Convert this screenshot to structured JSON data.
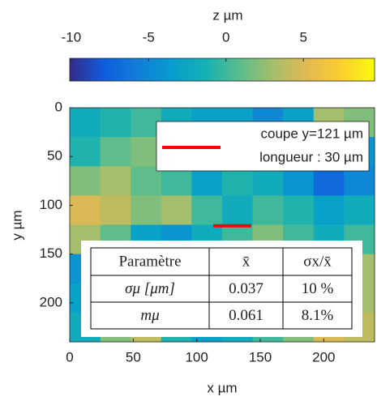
{
  "chart_data": {
    "type": "heatmap",
    "xlabel": "x µm",
    "ylabel": "y µm",
    "colorbar_label": "z µm",
    "clim": [
      -10.1,
      9.6
    ],
    "cticks": [
      -10,
      -5,
      0,
      5
    ],
    "colormap": [
      "#352a87",
      "#0f5cdd",
      "#127dd8",
      "#079ccf",
      "#15b1b4",
      "#59bd8c",
      "#a5be6b",
      "#e1b952",
      "#fcce2e",
      "#f9fb0e"
    ],
    "xlim": [
      0,
      240
    ],
    "ylim": [
      0,
      240
    ],
    "xticks": [
      0,
      50,
      100,
      150,
      200
    ],
    "yticks": [
      0,
      50,
      100,
      150,
      200
    ],
    "x": [
      12,
      36,
      60,
      84,
      108,
      132,
      156,
      180,
      204,
      228
    ],
    "y": [
      15,
      45,
      75,
      105,
      135,
      165,
      195,
      225
    ],
    "z": [
      [
        -2,
        -1,
        0,
        -2,
        -3,
        -3,
        -5,
        -3,
        3,
        2
      ],
      [
        -1,
        1,
        2,
        -1,
        -3,
        -2,
        -3,
        -5,
        -6,
        -4
      ],
      [
        2,
        3,
        1,
        0,
        -3,
        -1,
        -2,
        -4,
        -7,
        -5
      ],
      [
        5,
        4,
        2,
        3,
        0,
        -2,
        0,
        -1,
        -3,
        -2
      ],
      [
        3,
        1,
        -3,
        -4,
        -2,
        0,
        2,
        0,
        -2,
        0
      ],
      [
        -4,
        -3,
        -4,
        -3,
        -1,
        1,
        0,
        -2,
        2,
        3
      ],
      [
        -3,
        -3,
        -2,
        -4,
        -2,
        -1,
        2,
        3,
        4,
        3
      ],
      [
        -2,
        2,
        4,
        -1,
        -3,
        -2,
        0,
        2,
        5,
        4
      ]
    ],
    "cut": {
      "name": "coupe y=121 µm",
      "y": 121,
      "x": [
        113,
        143
      ],
      "color": "#ff0000"
    },
    "annotation": "longueur : 30 µm",
    "table": {
      "header": [
        "Paramètre",
        "x̄",
        "σx/x̄"
      ],
      "rows": [
        [
          "σμ [μm]",
          "0.037",
          "10 %"
        ],
        [
          "mμ",
          "0.061",
          "8.1%"
        ]
      ]
    }
  }
}
